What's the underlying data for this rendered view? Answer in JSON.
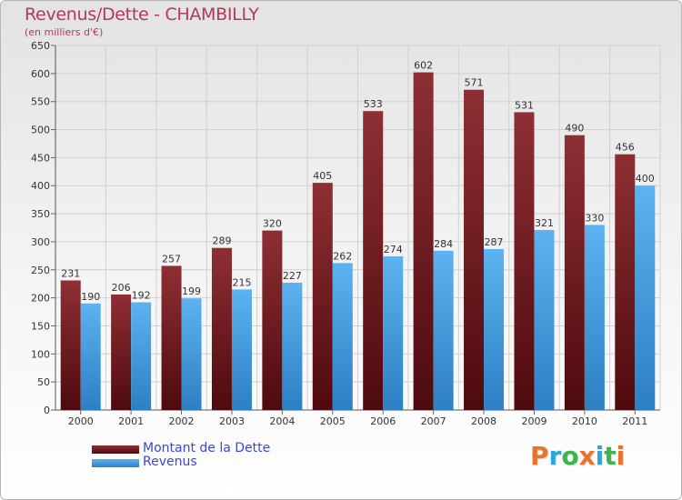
{
  "chart_data": {
    "type": "bar",
    "title": "Revenus/Dette - CHAMBILLY",
    "subtitle": "(en milliers d'€)",
    "categories": [
      "2000",
      "2001",
      "2002",
      "2003",
      "2004",
      "2005",
      "2006",
      "2007",
      "2008",
      "2009",
      "2010",
      "2011"
    ],
    "series": [
      {
        "name": "Montant de la Dette",
        "color": "#7a1e24",
        "values": [
          231,
          206,
          257,
          289,
          320,
          405,
          533,
          602,
          571,
          531,
          490,
          456
        ]
      },
      {
        "name": "Revenus",
        "color": "#4aa3e6",
        "values": [
          190,
          192,
          199,
          215,
          227,
          262,
          274,
          284,
          287,
          321,
          330,
          400
        ]
      }
    ],
    "ylim": [
      0,
      650
    ],
    "yticks": [
      0,
      50,
      100,
      150,
      200,
      250,
      300,
      350,
      400,
      450,
      500,
      550,
      600,
      650
    ],
    "grid": true,
    "legend": "bottom-left"
  },
  "logo": {
    "letters": [
      "P",
      "r",
      "o",
      "x",
      "i",
      "t",
      "i"
    ],
    "colors": [
      "#e8732a",
      "#2aa7d8",
      "#3cb54a",
      "#e8732a",
      "#2aa7d8",
      "#3cb54a",
      "#e8732a"
    ]
  }
}
